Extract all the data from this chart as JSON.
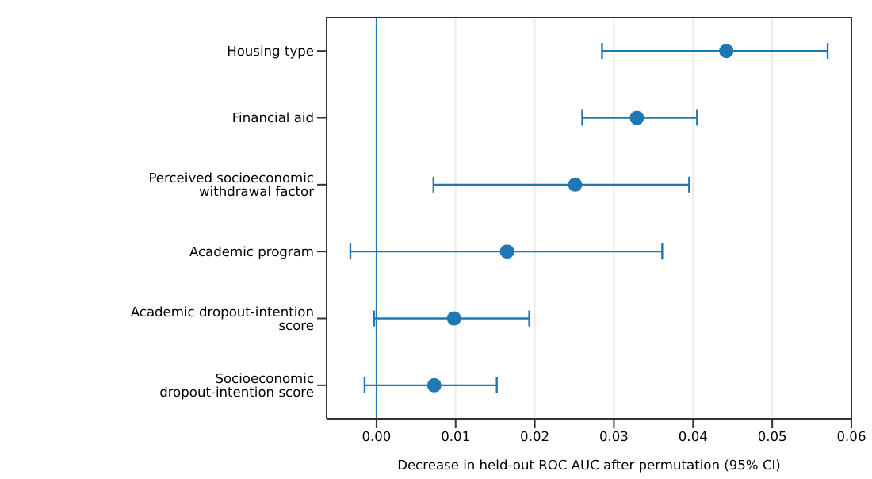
{
  "chart_data": {
    "type": "scatter",
    "orientation": "horizontal",
    "xlabel": "Decrease in held-out ROC AUC after permutation (95% CI)",
    "categories": [
      "Housing type",
      "Financial aid",
      "Perceived socioeconomic withdrawal factor",
      "Academic program",
      "Academic dropout-intention score",
      "Socioeconomic dropout-intention score"
    ],
    "values": [
      0.0442,
      0.0329,
      0.0251,
      0.0165,
      0.0098,
      0.0073
    ],
    "errors": [
      [
        0.0285,
        0.057
      ],
      [
        0.026,
        0.0405
      ],
      [
        0.0072,
        0.0395
      ],
      [
        -0.0033,
        0.0361
      ],
      [
        -0.0003,
        0.0193
      ],
      [
        -0.0015,
        0.0152
      ]
    ],
    "color": "#1f77b4",
    "marker": "circle",
    "grid": "x",
    "xlim": [
      -0.0063,
      0.06
    ],
    "xticks": [
      {
        "value": 0,
        "label": "0.00"
      },
      {
        "value": 0.01,
        "label": "0.01"
      },
      {
        "value": 0.02,
        "label": "0.02"
      },
      {
        "value": 0.03,
        "label": "0.03"
      },
      {
        "value": 0.04,
        "label": "0.04"
      },
      {
        "value": 0.05,
        "label": "0.05"
      },
      {
        "value": 0.06,
        "label": "0.06"
      }
    ],
    "ref_lines": [
      {
        "axis": "x",
        "value": 0,
        "color": "#1f77b4"
      }
    ]
  }
}
